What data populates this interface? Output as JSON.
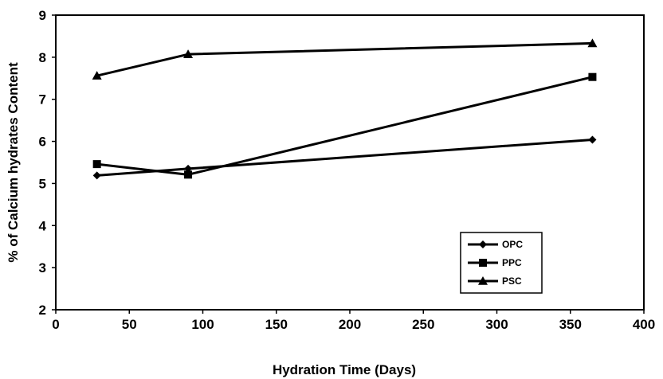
{
  "chart_data": {
    "type": "line",
    "title": "",
    "xlabel": "Hydration Time (Days)",
    "ylabel": "% of Calcium hydrates Content",
    "xlim": [
      0,
      400
    ],
    "ylim": [
      2,
      9
    ],
    "xticks": [
      0,
      50,
      100,
      150,
      200,
      250,
      300,
      350,
      400
    ],
    "yticks": [
      2,
      3,
      4,
      5,
      6,
      7,
      8,
      9
    ],
    "grid": false,
    "legend_position": "bottom-right",
    "x": [
      28,
      90,
      365
    ],
    "series": [
      {
        "name": "OPC",
        "marker": "diamond",
        "values": [
          5.19,
          5.35,
          6.04
        ]
      },
      {
        "name": "PPC",
        "marker": "square",
        "values": [
          5.46,
          5.21,
          7.53
        ]
      },
      {
        "name": "PSC",
        "marker": "triangle",
        "values": [
          7.56,
          8.07,
          8.33
        ]
      }
    ],
    "line_color": "#000000"
  }
}
